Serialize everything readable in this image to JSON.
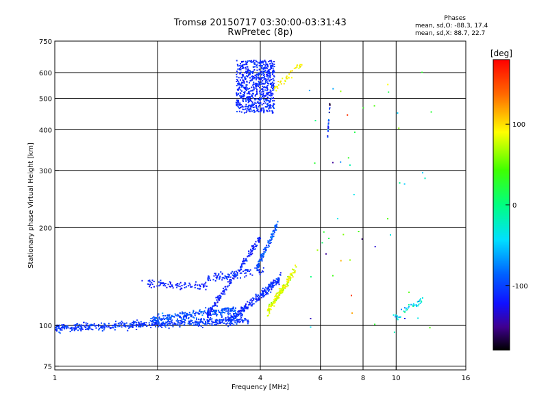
{
  "title": "Tromsø 20150717 03:30:00-03:31:43",
  "subtitle": "RwPretec (8p)",
  "phase_stats": {
    "heading": "Phases",
    "line_o": "mean, sd,O: -88.3, 17.4",
    "line_x": "mean, sd,X:  88.7, 22.7"
  },
  "colorbar": {
    "label": "[deg]",
    "ticks": [
      "100",
      "0",
      "-100"
    ],
    "tick_values": [
      100,
      0,
      -100
    ],
    "range": [
      -180,
      180
    ]
  },
  "chart_data": {
    "type": "scatter",
    "xlabel": "Frequency [MHz]",
    "ylabel": "Stationary phase Virtual Height [km]",
    "x_scale": "log",
    "y_scale": "log",
    "xlim": [
      1,
      16
    ],
    "ylim": [
      73,
      750
    ],
    "x_ticks": [
      "1",
      "2",
      "4",
      "6",
      "8",
      "10",
      "16"
    ],
    "x_tick_values": [
      1,
      2,
      4,
      6,
      8,
      10,
      16
    ],
    "y_ticks": [
      "75",
      "100",
      "200",
      "300",
      "400",
      "500",
      "600",
      "750"
    ],
    "y_tick_values": [
      75,
      100,
      200,
      300,
      400,
      500,
      600,
      750
    ],
    "grid": true,
    "color_meaning": "phase [deg]",
    "point_groups": [
      {
        "description": "low E-region trace",
        "x_range": [
          1.0,
          3.7
        ],
        "height_start": 98,
        "height_end": 104,
        "phase_center": -105,
        "phase_spread": 12,
        "count": 520
      },
      {
        "description": "upper E-region band",
        "x_range": [
          1.9,
          3.4
        ],
        "height_start": 104,
        "height_end": 112,
        "phase_center": -95,
        "phase_spread": 18,
        "count": 240
      },
      {
        "description": "rising trace",
        "x_range": [
          3.2,
          4.6
        ],
        "height_start": 102,
        "height_end": 140,
        "phase_center": -110,
        "phase_spread": 15,
        "count": 260
      },
      {
        "description": "curving trace",
        "x_range": [
          2.8,
          4.0
        ],
        "height_start": 108,
        "height_end": 185,
        "phase_center": -115,
        "phase_spread": 12,
        "count": 180
      },
      {
        "description": "Es band",
        "x_range": [
          1.8,
          2.8
        ],
        "height_start": 135,
        "height_end": 132,
        "phase_center": -115,
        "phase_spread": 10,
        "count": 90
      },
      {
        "description": "Es band",
        "x_range": [
          2.8,
          4.1
        ],
        "height_start": 140,
        "height_end": 148,
        "phase_center": -110,
        "phase_spread": 10,
        "count": 90
      },
      {
        "description": "X-mode cluster",
        "x_range": [
          4.2,
          5.1
        ],
        "height_start": 110,
        "height_end": 150,
        "phase_center": 85,
        "phase_spread": 20,
        "count": 160
      },
      {
        "description": "vertical column",
        "x_range": [
          3.9,
          4.5
        ],
        "height_start": 150,
        "height_end": 205,
        "phase_center": -95,
        "phase_spread": 20,
        "count": 110
      },
      {
        "description": "F-region cluster",
        "x_range": [
          3.4,
          4.4
        ],
        "height_start": 450,
        "height_end": 655,
        "phase_center": -110,
        "phase_spread": 12,
        "count": 700
      },
      {
        "description": "F-region X-mode",
        "x_range": [
          4.4,
          5.3
        ],
        "height_start": 530,
        "height_end": 640,
        "phase_center": 90,
        "phase_spread": 15,
        "count": 40
      },
      {
        "description": "near 6.4 MHz",
        "x_range": [
          6.3,
          6.4
        ],
        "height_start": 380,
        "height_end": 480,
        "phase_center": -100,
        "phase_spread": 60,
        "count": 20
      },
      {
        "description": "near 10 MHz",
        "x_range": [
          9.8,
          12.0
        ],
        "height_start": 105,
        "height_end": 120,
        "phase_center": -40,
        "phase_spread": 40,
        "count": 40
      },
      {
        "description": "sparse high-frequency points",
        "x_range": [
          5.5,
          13.0
        ],
        "height_start": 95,
        "height_end": 650,
        "phase_center": 0,
        "phase_spread": 120,
        "count": 50
      }
    ]
  }
}
